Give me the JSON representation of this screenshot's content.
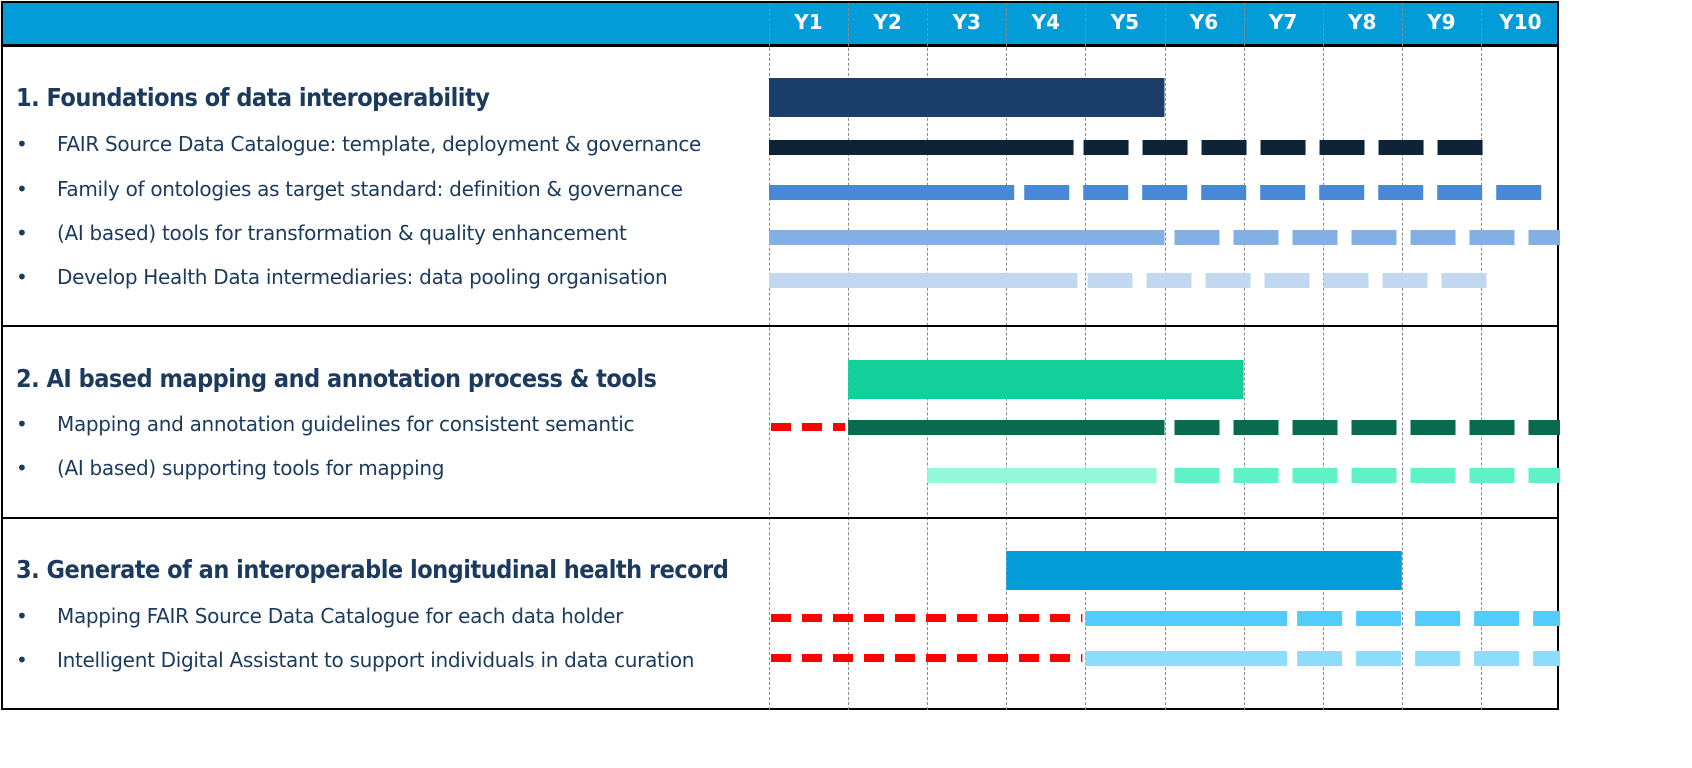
{
  "chart_data": {
    "type": "gantt",
    "title": "",
    "xlabel": "",
    "ylabel": "",
    "x_unit": "years",
    "x_range": [
      0,
      10
    ],
    "grid": true,
    "categories": [
      "Y1",
      "Y2",
      "Y3",
      "Y4",
      "Y5",
      "Y6",
      "Y7",
      "Y8",
      "Y9",
      "Y10"
    ],
    "sections": [
      {
        "title": "1. Foundations of data interoperability",
        "bar": {
          "start": 0,
          "end": 5,
          "color": "#1b3f6b"
        },
        "items": [
          {
            "label": "FAIR Source Data Catalogue: template, deployment & governance",
            "color": "#0e2238",
            "segments": [
              {
                "style": "solid",
                "start": 0,
                "end": 3.85
              },
              {
                "style": "dashed",
                "start": 3.85,
                "end": 9.1
              }
            ]
          },
          {
            "label": "Family of ontologies as target standard: definition & governance",
            "color": "#4789d6",
            "segments": [
              {
                "style": "solid",
                "start": 0,
                "end": 3.1
              },
              {
                "style": "dashed",
                "start": 3.1,
                "end": 9.85
              }
            ]
          },
          {
            "label": "(AI based) tools for transformation & quality enhancement",
            "color": "#82b0e3",
            "segments": [
              {
                "style": "solid",
                "start": 0,
                "end": 5
              },
              {
                "style": "dashed",
                "start": 5,
                "end": 10
              }
            ]
          },
          {
            "label": "Develop Health Data intermediaries: data pooling organisation",
            "color": "#c2d8f1",
            "segments": [
              {
                "style": "solid",
                "start": 0,
                "end": 3.9
              },
              {
                "style": "dashed",
                "start": 3.9,
                "end": 9.1
              }
            ]
          }
        ]
      },
      {
        "title": "2. AI based mapping and annotation process & tools",
        "bar": {
          "start": 1,
          "end": 6,
          "color": "#13cf9a"
        },
        "items": [
          {
            "label": "Mapping and annotation guidelines for consistent semantic",
            "color": "#0a6a50",
            "segments": [
              {
                "style": "lead",
                "start": 0,
                "end": 1
              },
              {
                "style": "solid",
                "start": 1,
                "end": 5
              },
              {
                "style": "dashed",
                "start": 5,
                "end": 10
              }
            ]
          },
          {
            "label": "(AI based) supporting tools for mapping",
            "color": "#5ff2c9",
            "solid_color": "#95f7da",
            "segments": [
              {
                "style": "solid",
                "start": 2,
                "end": 4.9
              },
              {
                "style": "dashed",
                "start": 5,
                "end": 10
              }
            ]
          }
        ]
      },
      {
        "title": "3. Generate of an interoperable longitudinal health record",
        "bar": {
          "start": 3,
          "end": 8,
          "color": "#029dd8"
        },
        "items": [
          {
            "label": "Mapping FAIR Source Data Catalogue for each data holder",
            "color": "#51cdfd",
            "segments": [
              {
                "style": "lead",
                "start": 0,
                "end": 4
              },
              {
                "style": "solid",
                "start": 4,
                "end": 6.55
              },
              {
                "style": "dashed",
                "start": 6.55,
                "end": 10
              }
            ]
          },
          {
            "label": "Intelligent Digital Assistant to support individuals in data curation",
            "color": "#8cdcfc",
            "segments": [
              {
                "style": "lead",
                "start": 0,
                "end": 4
              },
              {
                "style": "solid",
                "start": 4,
                "end": 6.55
              },
              {
                "style": "dashed",
                "start": 6.55,
                "end": 10
              }
            ]
          }
        ]
      }
    ],
    "lead_color": "#ff0000",
    "header_color": "#029dd8"
  },
  "bullet": "•"
}
